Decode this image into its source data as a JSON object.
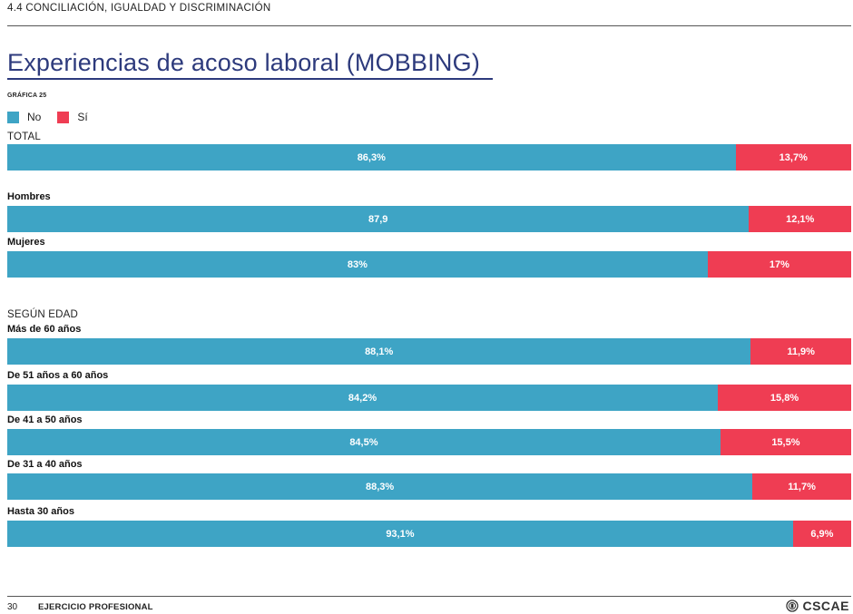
{
  "header": {
    "section": "4.4 CONCILIACIÓN, IGUALDAD Y DISCRIMINACIÓN",
    "title": "Experiencias de acoso laboral (MOBBING)",
    "chart_number": "GRÁFICA 25"
  },
  "legend": [
    {
      "label": "No",
      "color": "#3ea4c5"
    },
    {
      "label": "Sí",
      "color": "#ef3d53"
    }
  ],
  "groups": {
    "total": "TOTAL",
    "edad": "SEGÚN EDAD"
  },
  "chart_data": {
    "type": "bar",
    "orientation": "horizontal",
    "stacked": true,
    "normalized": true,
    "series": [
      {
        "name": "No",
        "color": "#3ea4c5"
      },
      {
        "name": "Sí",
        "color": "#ef3d53"
      }
    ],
    "rows": [
      {
        "label": "",
        "group": "TOTAL",
        "no": 86.3,
        "si": 13.7,
        "no_text": "86,3%",
        "si_text": "13,7%"
      },
      {
        "label": "Hombres",
        "no": 87.9,
        "si": 12.1,
        "no_text": "87,9",
        "si_text": "12,1%"
      },
      {
        "label": "Mujeres",
        "no": 83,
        "si": 17,
        "no_text": "83%",
        "si_text": "17%"
      },
      {
        "label": "Más de 60 años",
        "group": "SEGÚN EDAD",
        "no": 88.1,
        "si": 11.9,
        "no_text": "88,1%",
        "si_text": "11,9%"
      },
      {
        "label": "De 51 años a 60 años",
        "no": 84.2,
        "si": 15.8,
        "no_text": "84,2%",
        "si_text": "15,8%"
      },
      {
        "label": "De 41 a 50 años",
        "no": 84.5,
        "si": 15.5,
        "no_text": "84,5%",
        "si_text": "15,5%"
      },
      {
        "label": "De 31 a 40 años",
        "no": 88.3,
        "si": 11.7,
        "no_text": "88,3%",
        "si_text": "11,7%"
      },
      {
        "label": "Hasta 30 años",
        "no": 93.1,
        "si": 6.9,
        "no_text": "93,1%",
        "si_text": "6,9%"
      }
    ]
  },
  "footer": {
    "page": "30",
    "title": "EJERCICIO PROFESIONAL",
    "logo": "CSCAE"
  }
}
